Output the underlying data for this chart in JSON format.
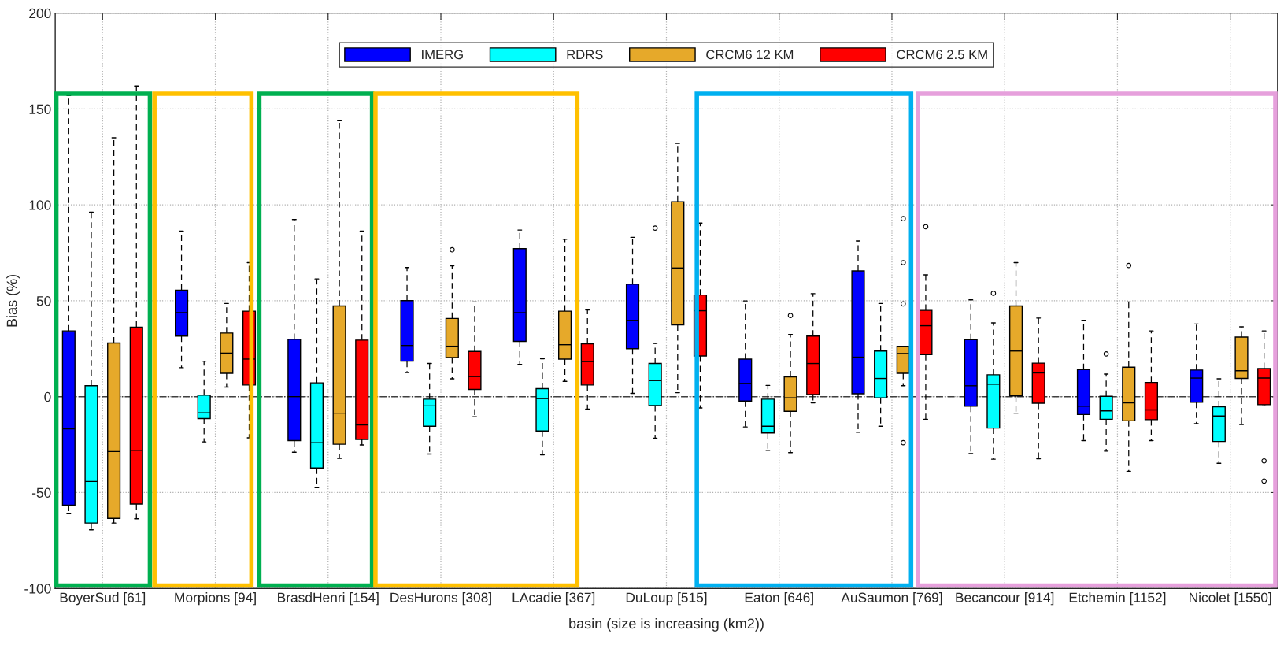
{
  "chart_data": {
    "type": "box",
    "xlabel": "basin (size is increasing (km2))",
    "ylabel": "Bias (%)",
    "categories": [
      "BoyerSud [61]",
      "Morpions [94]",
      "BrasdHenri [154]",
      "DesHurons [308]",
      "LAcadie [367]",
      "DuLoup [515]",
      "Eaton [646]",
      "AuSaumon [769]",
      "Becancour [914]",
      "Etchemin [1152]",
      "Nicolet [1550]"
    ],
    "ylim": [
      -100,
      200
    ],
    "yticks": [
      -100,
      -50,
      0,
      50,
      100,
      150,
      200
    ],
    "grid": true,
    "legend": "top",
    "ref_lines": [
      {
        "axis": "y",
        "value": 0,
        "color": "#404040",
        "line_style": "dashdot"
      }
    ],
    "series": [
      {
        "name": "IMERG",
        "color": "#0000ff",
        "boxes": [
          {
            "low": -61,
            "q1": -56.6,
            "median": -16.8,
            "q3": 34.3,
            "high": 157
          },
          {
            "low": 15.1,
            "q1": 31.6,
            "median": 43.8,
            "q3": 55.5,
            "high": 86.3
          },
          {
            "low": -29,
            "q1": -22.9,
            "median": 0,
            "q3": 29.9,
            "high": 92.4
          },
          {
            "low": 12.6,
            "q1": 18.5,
            "median": 26.7,
            "q3": 50.1,
            "high": 67.3
          },
          {
            "low": 16.8,
            "q1": 28.8,
            "median": 43.8,
            "q3": 77.2,
            "high": 86.9
          },
          {
            "low": 1.7,
            "q1": 25,
            "median": 39.8,
            "q3": 58.7,
            "high": 83.1
          },
          {
            "low": -15.8,
            "q1": -2.3,
            "median": 6.9,
            "q3": 19.6,
            "high": 49.9
          },
          {
            "low": -18.5,
            "q1": 1.5,
            "median": 20.6,
            "q3": 65.6,
            "high": 81.2
          },
          {
            "low": -29.7,
            "q1": -5,
            "median": 5.7,
            "q3": 29.7,
            "high": 50.5
          },
          {
            "low": -22.9,
            "q1": -9.3,
            "median": -5,
            "q3": 14.1,
            "high": 39.8
          },
          {
            "low": -14.1,
            "q1": -2.9,
            "median": 9.7,
            "q3": 13.9,
            "high": 37.9
          }
        ]
      },
      {
        "name": "RDRS",
        "color": "#00ffff",
        "boxes": [
          {
            "low": -69.4,
            "q1": -65.9,
            "median": -44.2,
            "q3": 5.7,
            "high": 96.2
          },
          {
            "low": -23.6,
            "q1": -11.4,
            "median": -8.4,
            "q3": 0.8,
            "high": 18.5
          },
          {
            "low": -47.5,
            "q1": -37.2,
            "median": -24,
            "q3": 7.2,
            "high": 61.4
          },
          {
            "low": -29.9,
            "q1": -15.4,
            "median": -4.8,
            "q3": -1.3,
            "high": 17.3
          },
          {
            "low": -30.3,
            "q1": -17.9,
            "median": -1,
            "q3": 4.2,
            "high": 19.8
          },
          {
            "low": -21.7,
            "q1": -4.6,
            "median": 8.4,
            "q3": 17.3,
            "high": 27.8,
            "outliers": [
              87.9
            ]
          },
          {
            "low": -28,
            "q1": -18.9,
            "median": -15.4,
            "q3": -1.3,
            "high": 5.9
          },
          {
            "low": -15.4,
            "q1": -0.6,
            "median": 9.5,
            "q3": 23.8,
            "high": 48.6
          },
          {
            "low": -32.6,
            "q1": -16.4,
            "median": 6.5,
            "q3": 11.4,
            "high": 38.5,
            "outliers": [
              53.9
            ]
          },
          {
            "low": -28.4,
            "q1": -11.8,
            "median": -7.4,
            "q3": 0.2,
            "high": 11.8,
            "outliers": [
              22.3
            ]
          },
          {
            "low": -34.7,
            "q1": -23.4,
            "median": -10.1,
            "q3": -5.3,
            "high": 9.3
          }
        ]
      },
      {
        "name": "CRCM6 12 KM",
        "color": "#e6a92a",
        "boxes": [
          {
            "low": -65.9,
            "q1": -63.5,
            "median": -28.6,
            "q3": 28,
            "high": 135
          },
          {
            "low": 5,
            "q1": 12.2,
            "median": 22.7,
            "q3": 33.2,
            "high": 48.6
          },
          {
            "low": -32.2,
            "q1": -24.8,
            "median": -8.6,
            "q3": 47.3,
            "high": 143.9
          },
          {
            "low": 9.3,
            "q1": 20.4,
            "median": 26.3,
            "q3": 40.8,
            "high": 68.2,
            "outliers": [
              76.6
            ]
          },
          {
            "low": 8,
            "q1": 19.6,
            "median": 27.1,
            "q3": 44.6,
            "high": 82.1
          },
          {
            "low": 2.1,
            "q1": 37.4,
            "median": 67.1,
            "q3": 101.6,
            "high": 132.1
          },
          {
            "low": -29.2,
            "q1": -7.6,
            "median": -0.6,
            "q3": 10.3,
            "high": 32.4,
            "outliers": [
              42.3
            ]
          },
          {
            "low": 5.7,
            "q1": 12.2,
            "median": 22.5,
            "q3": 26.3,
            "high": 26.3,
            "outliers": [
              48.4,
              69.9,
              92.8,
              -24
            ]
          },
          {
            "low": -8.6,
            "q1": 0.4,
            "median": 23.8,
            "q3": 47.3,
            "high": 69.9
          },
          {
            "low": -38.9,
            "q1": -12.6,
            "median": -3.2,
            "q3": 15.4,
            "high": 49.4,
            "outliers": [
              68.4
            ]
          },
          {
            "low": -14.5,
            "q1": 9.5,
            "median": 13.5,
            "q3": 31.1,
            "high": 36.4
          }
        ]
      },
      {
        "name": "CRCM6 2.5 KM",
        "color": "#ff0000",
        "boxes": [
          {
            "low": -63.7,
            "q1": -56,
            "median": -28,
            "q3": 36.2,
            "high": 162
          },
          {
            "low": -21.5,
            "q1": 6.1,
            "median": 19.6,
            "q3": 44.6,
            "high": 69.9
          },
          {
            "low": -25.2,
            "q1": -22.3,
            "median": -14.7,
            "q3": 29.5,
            "high": 86.3
          },
          {
            "low": -10.5,
            "q1": 3.8,
            "median": 10.5,
            "q3": 23.6,
            "high": 49.4
          },
          {
            "low": -6.5,
            "q1": 6.1,
            "median": 18.3,
            "q3": 27.6,
            "high": 45.2
          },
          {
            "low": -5.9,
            "q1": 21.2,
            "median": 44.8,
            "q3": 53,
            "high": 90.5
          },
          {
            "low": -3.2,
            "q1": 1.1,
            "median": 17.3,
            "q3": 31.6,
            "high": 53.7
          },
          {
            "low": -11.8,
            "q1": 21.9,
            "median": 37,
            "q3": 45,
            "high": 63.5,
            "outliers": [
              88.6
            ]
          },
          {
            "low": -32.4,
            "q1": -3.4,
            "median": 12.4,
            "q3": 17.5,
            "high": 41
          },
          {
            "low": -22.9,
            "q1": -12,
            "median": -6.9,
            "q3": 7.4,
            "high": 34.3
          },
          {
            "low": -4.8,
            "q1": -4.2,
            "median": 9.7,
            "q3": 14.7,
            "high": 34.3,
            "outliers": [
              -33.5,
              -44
            ]
          }
        ]
      }
    ]
  }
}
